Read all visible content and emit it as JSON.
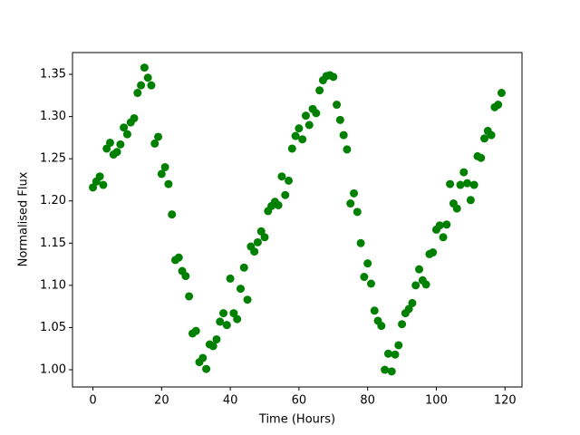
{
  "chart_data": {
    "type": "scatter",
    "xlabel": "Time (Hours)",
    "ylabel": "Normalised Flux",
    "color": "#008000",
    "xlim": [
      -5.95,
      124.95
    ],
    "ylim": [
      0.9796,
      1.3758
    ],
    "xticks": [
      0,
      20,
      40,
      60,
      80,
      100,
      120
    ],
    "yticks": [
      {
        "value": 1.0,
        "label": "1.00"
      },
      1.05,
      {
        "value": 1.1,
        "label": "1.10"
      },
      1.15,
      {
        "value": 1.2,
        "label": "1.20"
      },
      1.25,
      {
        "value": 1.3,
        "label": "1.30"
      },
      1.35
    ],
    "grid": false,
    "x": [
      0,
      1,
      2,
      3,
      4,
      5,
      6,
      7,
      8,
      9,
      10,
      11,
      12,
      13,
      14,
      15,
      16,
      17,
      18,
      19,
      20,
      21,
      22,
      23,
      24,
      25,
      26,
      27,
      28,
      29,
      30,
      31,
      32,
      33,
      34,
      35,
      36,
      37,
      38,
      39,
      40,
      41,
      42,
      43,
      44,
      45,
      46,
      47,
      48,
      49,
      50,
      51,
      52,
      53,
      54,
      55,
      56,
      57,
      58,
      59,
      60,
      61,
      62,
      63,
      64,
      65,
      66,
      67,
      68,
      69,
      70,
      71,
      72,
      73,
      74,
      75,
      76,
      77,
      78,
      79,
      80,
      81,
      82,
      83,
      84,
      85,
      86,
      87,
      88,
      89,
      90,
      91,
      92,
      93,
      94,
      95,
      96,
      97,
      98,
      99,
      100,
      101,
      102,
      103,
      104,
      105,
      106,
      107,
      108,
      109,
      110,
      111,
      112,
      113,
      114,
      115,
      116,
      117,
      118,
      119
    ],
    "values": [
      1.216,
      1.223,
      1.229,
      1.219,
      1.262,
      1.269,
      1.255,
      1.258,
      1.267,
      1.287,
      1.279,
      1.293,
      1.298,
      1.328,
      1.337,
      1.358,
      1.346,
      1.337,
      1.268,
      1.276,
      1.232,
      1.24,
      1.22,
      1.184,
      1.13,
      1.133,
      1.117,
      1.111,
      1.087,
      1.043,
      1.046,
      1.009,
      1.014,
      1.001,
      1.03,
      1.028,
      1.036,
      1.057,
      1.067,
      1.053,
      1.108,
      1.067,
      1.06,
      1.096,
      1.121,
      1.083,
      1.146,
      1.14,
      1.151,
      1.164,
      1.157,
      1.188,
      1.194,
      1.199,
      1.195,
      1.229,
      1.207,
      1.224,
      1.262,
      1.277,
      1.286,
      1.273,
      1.301,
      1.29,
      1.309,
      1.304,
      1.331,
      1.343,
      1.348,
      1.349,
      1.347,
      1.314,
      1.296,
      1.278,
      1.261,
      1.197,
      1.209,
      1.187,
      1.15,
      1.11,
      1.126,
      1.102,
      1.07,
      1.058,
      1.052,
      1.0,
      1.019,
      0.998,
      1.018,
      1.029,
      1.054,
      1.067,
      1.072,
      1.079,
      1.1,
      1.119,
      1.106,
      1.101,
      1.137,
      1.139,
      1.166,
      1.171,
      1.157,
      1.172,
      1.22,
      1.197,
      1.191,
      1.219,
      1.234,
      1.221,
      1.201,
      1.219,
      1.253,
      1.251,
      1.274,
      1.283,
      1.278,
      1.311,
      1.314,
      1.328
    ]
  }
}
